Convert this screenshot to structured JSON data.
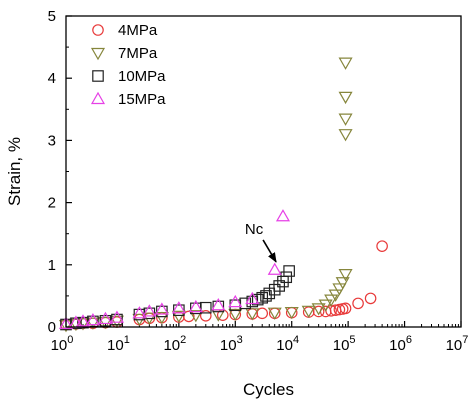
{
  "chart_data": {
    "type": "scatter",
    "xlabel": "Cycles",
    "ylabel": "Strain, %",
    "xscale": "log",
    "xlim": [
      1,
      10000000
    ],
    "ylim": [
      0,
      5
    ],
    "x_tick_labels": [
      {
        "base": "10",
        "exp": "0"
      },
      {
        "base": "10",
        "exp": "1"
      },
      {
        "base": "10",
        "exp": "2"
      },
      {
        "base": "10",
        "exp": "3"
      },
      {
        "base": "10",
        "exp": "4"
      },
      {
        "base": "10",
        "exp": "5"
      },
      {
        "base": "10",
        "exp": "6"
      },
      {
        "base": "10",
        "exp": "7"
      }
    ],
    "y_ticks": [
      "0",
      "1",
      "2",
      "3",
      "4",
      "5"
    ],
    "legend_position": "top-left",
    "series": [
      {
        "name": "4MPa",
        "marker": "circle",
        "color": "#e83a3a",
        "x": [
          1,
          1.5,
          2,
          3,
          5,
          8,
          20,
          30,
          50,
          100,
          150,
          300,
          600,
          1000,
          2000,
          3000,
          5000,
          10000,
          20000,
          30000,
          40000,
          50000,
          60000,
          70000,
          80000,
          90000,
          150000,
          250000,
          400000
        ],
        "y": [
          0.04,
          0.05,
          0.06,
          0.06,
          0.07,
          0.08,
          0.12,
          0.14,
          0.15,
          0.16,
          0.17,
          0.18,
          0.19,
          0.2,
          0.21,
          0.22,
          0.22,
          0.23,
          0.24,
          0.25,
          0.25,
          0.26,
          0.27,
          0.28,
          0.29,
          0.3,
          0.38,
          0.46,
          1.3
        ]
      },
      {
        "name": "7MPa",
        "marker": "triangle-down",
        "color": "#86863c",
        "x": [
          1,
          1.5,
          2,
          3,
          5,
          8,
          20,
          30,
          50,
          100,
          200,
          500,
          1000,
          2000,
          5000,
          10000,
          20000,
          30000,
          40000,
          50000,
          60000,
          70000,
          80000,
          90000,
          90000,
          90000,
          90000,
          90000
        ],
        "y": [
          0.03,
          0.05,
          0.06,
          0.07,
          0.08,
          0.1,
          0.13,
          0.15,
          0.16,
          0.18,
          0.19,
          0.2,
          0.21,
          0.22,
          0.23,
          0.24,
          0.26,
          0.3,
          0.36,
          0.44,
          0.52,
          0.62,
          0.72,
          0.85,
          3.1,
          3.35,
          3.7,
          4.25
        ]
      },
      {
        "name": "10MPa",
        "marker": "square",
        "color": "#222222",
        "x": [
          1,
          1.5,
          2,
          3,
          5,
          8,
          20,
          30,
          50,
          100,
          200,
          300,
          500,
          1000,
          1500,
          2000,
          2500,
          3000,
          3500,
          4000,
          5000,
          6000,
          7000,
          8000,
          9000
        ],
        "y": [
          0.04,
          0.06,
          0.07,
          0.09,
          0.1,
          0.12,
          0.2,
          0.22,
          0.25,
          0.27,
          0.3,
          0.31,
          0.33,
          0.35,
          0.38,
          0.41,
          0.44,
          0.47,
          0.5,
          0.54,
          0.6,
          0.66,
          0.73,
          0.8,
          0.9
        ]
      },
      {
        "name": "15MPa",
        "marker": "triangle-up",
        "color": "#e640e6",
        "x": [
          1,
          1.5,
          2,
          3,
          5,
          8,
          20,
          30,
          50,
          100,
          200,
          500,
          1000,
          2000,
          5000,
          7000
        ],
        "y": [
          0.05,
          0.07,
          0.09,
          0.11,
          0.13,
          0.15,
          0.22,
          0.25,
          0.28,
          0.3,
          0.32,
          0.35,
          0.4,
          0.45,
          0.92,
          1.78
        ]
      }
    ],
    "annotations": [
      {
        "text": "Nc",
        "arrow_to": {
          "x": 5500,
          "y": 0.95
        }
      }
    ]
  }
}
